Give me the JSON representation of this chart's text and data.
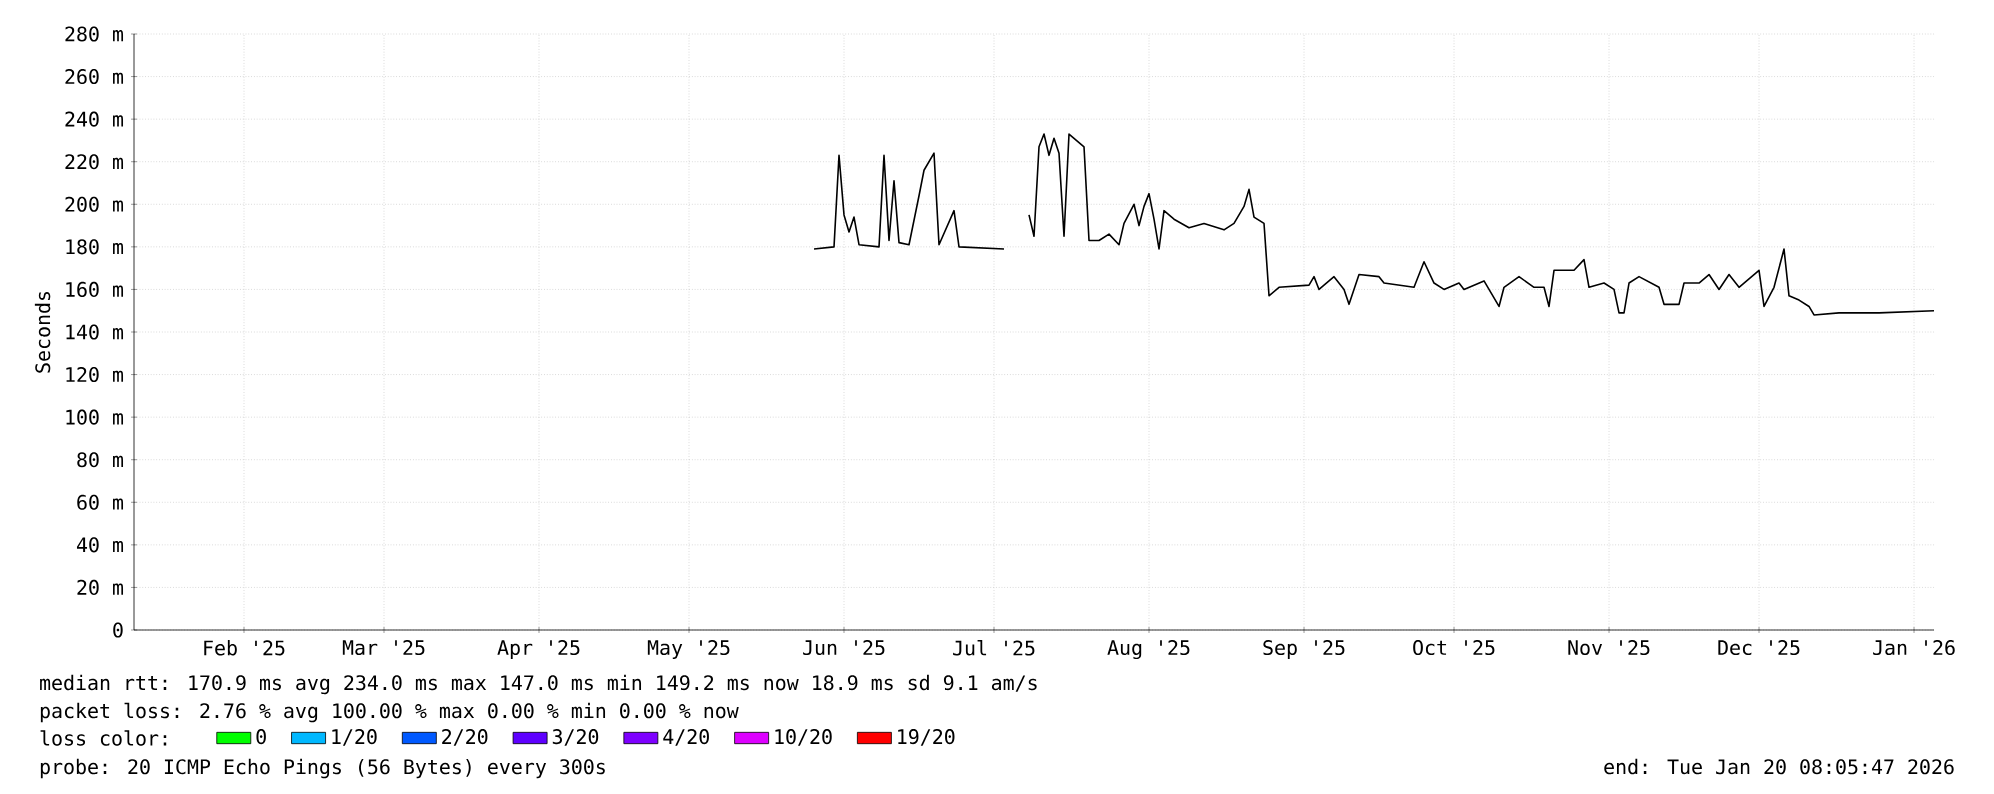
{
  "chart_data": {
    "type": "line",
    "ylabel": "Seconds",
    "xlim": [
      "2025-01-25",
      "2026-01-20"
    ],
    "xticks": [
      {
        "value": "2025-02-16",
        "label": "Feb '25"
      },
      {
        "value": "2025-03-16",
        "label": "Mar '25"
      },
      {
        "value": "2025-04-16",
        "label": "Apr '25"
      },
      {
        "value": "2025-05-16",
        "label": "May '25"
      },
      {
        "value": "2025-06-16",
        "label": "Jun '25"
      },
      {
        "value": "2025-07-16",
        "label": "Jul '25"
      },
      {
        "value": "2025-08-16",
        "label": "Aug '25"
      },
      {
        "value": "2025-09-16",
        "label": "Sep '25"
      },
      {
        "value": "2025-10-16",
        "label": "Oct '25"
      },
      {
        "value": "2025-11-16",
        "label": "Nov '25"
      },
      {
        "value": "2025-12-16",
        "label": "Dec '25"
      },
      {
        "value": "2026-01-16",
        "label": "Jan '26"
      }
    ],
    "ylim": [
      0,
      280
    ],
    "yticks": [
      0,
      {
        "value": 20,
        "label": "20 m"
      },
      {
        "value": 40,
        "label": "40 m"
      },
      {
        "value": 60,
        "label": "60 m"
      },
      {
        "value": 80,
        "label": "80 m"
      },
      {
        "value": 100,
        "label": "100 m"
      },
      {
        "value": 120,
        "label": "120 m"
      },
      {
        "value": 140,
        "label": "140 m"
      },
      {
        "value": 160,
        "label": "160 m"
      },
      {
        "value": 180,
        "label": "180 m"
      },
      {
        "value": 200,
        "label": "200 m"
      },
      {
        "value": 220,
        "label": "220 m"
      },
      {
        "value": 240,
        "label": "240 m"
      },
      {
        "value": 260,
        "label": "260 m"
      },
      {
        "value": 280,
        "label": "280 m"
      }
    ],
    "grid": true,
    "legend": "bottom",
    "legend_title": "loss color:",
    "series": [
      {
        "color": "#000000",
        "x": [
          "2025-06-10",
          "2025-06-14",
          "2025-06-15",
          "2025-06-16",
          "2025-06-17",
          "2025-06-18",
          "2025-06-19",
          "2025-06-23",
          "2025-06-24",
          "2025-06-25",
          "2025-06-26",
          "2025-06-27",
          "2025-06-29",
          "2025-07-01",
          "2025-07-02",
          "2025-07-04",
          "2025-07-05",
          "2025-07-08",
          "2025-07-09",
          "2025-07-18",
          "2025-07-20",
          "2025-07-23",
          "2025-07-24",
          "2025-07-25",
          "2025-07-26",
          "2025-07-27",
          "2025-07-28",
          "2025-07-29",
          "2025-07-30",
          "2025-07-31",
          "2025-08-02",
          "2025-08-03",
          "2025-08-04",
          "2025-08-06",
          "2025-08-08",
          "2025-08-10",
          "2025-08-11",
          "2025-08-13",
          "2025-08-14",
          "2025-08-15",
          "2025-08-16",
          "2025-08-17",
          "2025-08-18",
          "2025-08-19",
          "2025-08-21",
          "2025-08-24",
          "2025-08-27",
          "2025-08-31",
          "2025-09-02",
          "2025-09-04",
          "2025-09-05",
          "2025-09-06",
          "2025-09-08",
          "2025-09-09",
          "2025-09-11",
          "2025-09-17",
          "2025-09-18",
          "2025-09-19",
          "2025-09-22",
          "2025-09-24",
          "2025-09-25",
          "2025-09-27",
          "2025-10-01",
          "2025-10-02",
          "2025-10-08",
          "2025-10-10",
          "2025-10-12",
          "2025-10-14",
          "2025-10-17",
          "2025-10-18",
          "2025-10-22",
          "2025-10-25",
          "2025-10-26",
          "2025-10-29",
          "2025-11-01",
          "2025-11-03",
          "2025-11-04",
          "2025-11-05",
          "2025-11-09",
          "2025-11-11",
          "2025-11-12",
          "2025-11-15",
          "2025-11-17",
          "2025-11-18",
          "2025-11-19",
          "2025-11-20",
          "2025-11-22",
          "2025-11-26",
          "2025-11-27",
          "2025-11-30",
          "2025-12-01",
          "2025-12-04",
          "2025-12-06",
          "2025-12-08",
          "2025-12-10",
          "2025-12-12",
          "2025-12-16",
          "2025-12-17",
          "2025-12-19",
          "2025-12-21",
          "2025-12-22",
          "2025-12-24",
          "2025-12-26",
          "2025-12-27",
          "2026-01-01",
          "2026-01-09",
          "2026-01-20"
        ],
        "values": [
          179,
          180,
          223,
          195,
          187,
          194,
          181,
          180,
          223,
          183,
          211,
          182,
          181,
          204,
          216,
          224,
          181,
          197,
          180,
          179,
          null,
          195,
          185,
          227,
          233,
          223,
          231,
          224,
          185,
          233,
          229,
          227,
          183,
          183,
          186,
          181,
          191,
          200,
          190,
          199,
          205,
          193,
          179,
          197,
          193,
          189,
          191,
          188,
          191,
          199,
          207,
          194,
          191,
          157,
          161,
          162,
          166,
          160,
          166,
          160,
          153,
          167,
          166,
          163,
          161,
          173,
          163,
          160,
          163,
          160,
          164,
          152,
          161,
          166,
          161,
          161,
          152,
          169,
          169,
          174,
          161,
          163,
          160,
          149,
          149,
          163,
          166,
          161,
          153,
          153,
          163,
          163,
          167,
          160,
          167,
          161,
          169,
          152,
          161,
          179,
          157,
          155,
          152,
          148,
          149,
          149,
          150
        ]
      },
      {
        "name": "0",
        "color": "#00ff00"
      },
      {
        "name": "1/20",
        "color": "#00b8ff"
      },
      {
        "name": "2/20",
        "color": "#0059ff"
      },
      {
        "name": "3/20",
        "color": "#5e00ff"
      },
      {
        "name": "4/20",
        "color": "#7e00ff"
      },
      {
        "name": "10/20",
        "color": "#dd00ff"
      },
      {
        "name": "19/20",
        "color": "#ff0000"
      }
    ],
    "annotations": [
      "median rtt: 170.9 ms avg 234.0 ms max 147.0 ms min 149.2 ms now 18.9 ms sd 9.1 am/s",
      "packet loss: 2.76 % avg 100.00 % max 0.00 % min 0.00 % now",
      "probe: 20 ICMP Echo Pings (56 Bytes) every 300s",
      "end: Tue Jan 20 08:05:47 2026"
    ]
  }
}
